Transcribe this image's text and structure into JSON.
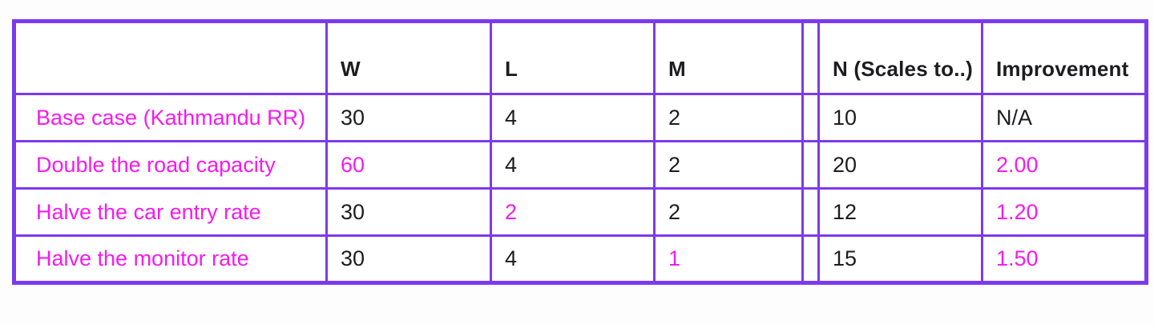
{
  "colors": {
    "table_border": "#7C3AED",
    "magenta_text": "#F51BEE",
    "black_text": "#1D1D20",
    "cell_background": "#FFFFFF",
    "page_background": "#FDFDFD"
  },
  "chart_data": {
    "type": "table",
    "headers": {
      "label": "",
      "w": "W",
      "l": "L",
      "m": "M",
      "spacer": "",
      "n": "N (Scales to..)",
      "improvement": "Improvement"
    },
    "rows": [
      {
        "label": "Base case (Kathmandu RR)",
        "w": "30",
        "l": "4",
        "m": "2",
        "n": "10",
        "improvement": "N/A",
        "magenta_cells": []
      },
      {
        "label": "Double the road capacity",
        "w": "60",
        "l": "4",
        "m": "2",
        "n": "20",
        "improvement": "2.00",
        "magenta_cells": [
          "w",
          "improvement"
        ]
      },
      {
        "label": "Halve the car entry rate",
        "w": "30",
        "l": "2",
        "m": "2",
        "n": "12",
        "improvement": "1.20",
        "magenta_cells": [
          "l",
          "improvement"
        ]
      },
      {
        "label": "Halve the monitor rate",
        "w": "30",
        "l": "4",
        "m": "1",
        "n": "15",
        "improvement": "1.50",
        "magenta_cells": [
          "m",
          "improvement"
        ]
      }
    ]
  }
}
